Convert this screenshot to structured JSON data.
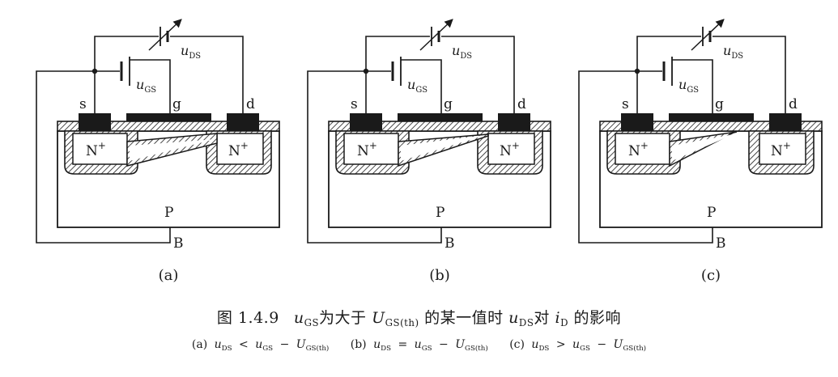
{
  "panels": [
    {
      "tag": "(a)",
      "channel": "tapered"
    },
    {
      "tag": "(b)",
      "channel": "pinch-at-drain"
    },
    {
      "tag": "(c)",
      "channel": "pinched-off"
    }
  ],
  "terminals": {
    "source": "s",
    "gate": "g",
    "drain": "d",
    "body": "B",
    "region_source": "N",
    "region_drain": "N",
    "superscript": "+",
    "substrate": "P"
  },
  "voltage_labels": {
    "var": "u",
    "ds_sub": "DS",
    "gs_sub": "GS"
  },
  "caption": {
    "figure_no": "图 1.4.9",
    "u_var": "u",
    "gs_sub": "GS",
    "text_1": "为大于",
    "U_var": "U",
    "th_sub": "GS(th)",
    "text_2": "的某一值时",
    "ds_sub": "DS",
    "text_3": "对",
    "i_var": "i",
    "d_sub": "D",
    "text_4": "的影响"
  },
  "subcaption": {
    "a_tag": "(a)",
    "a_rel": "<",
    "b_tag": "(b)",
    "b_rel": "=",
    "c_tag": "(c)",
    "c_rel": ">",
    "u": "u",
    "U": "U",
    "ds": "DS",
    "gs": "GS",
    "th": "GS(th)",
    "minus": "−"
  },
  "colors": {
    "ink": "#1a1a1a",
    "metal": "#1a1a1a",
    "paper": "#ffffff"
  }
}
